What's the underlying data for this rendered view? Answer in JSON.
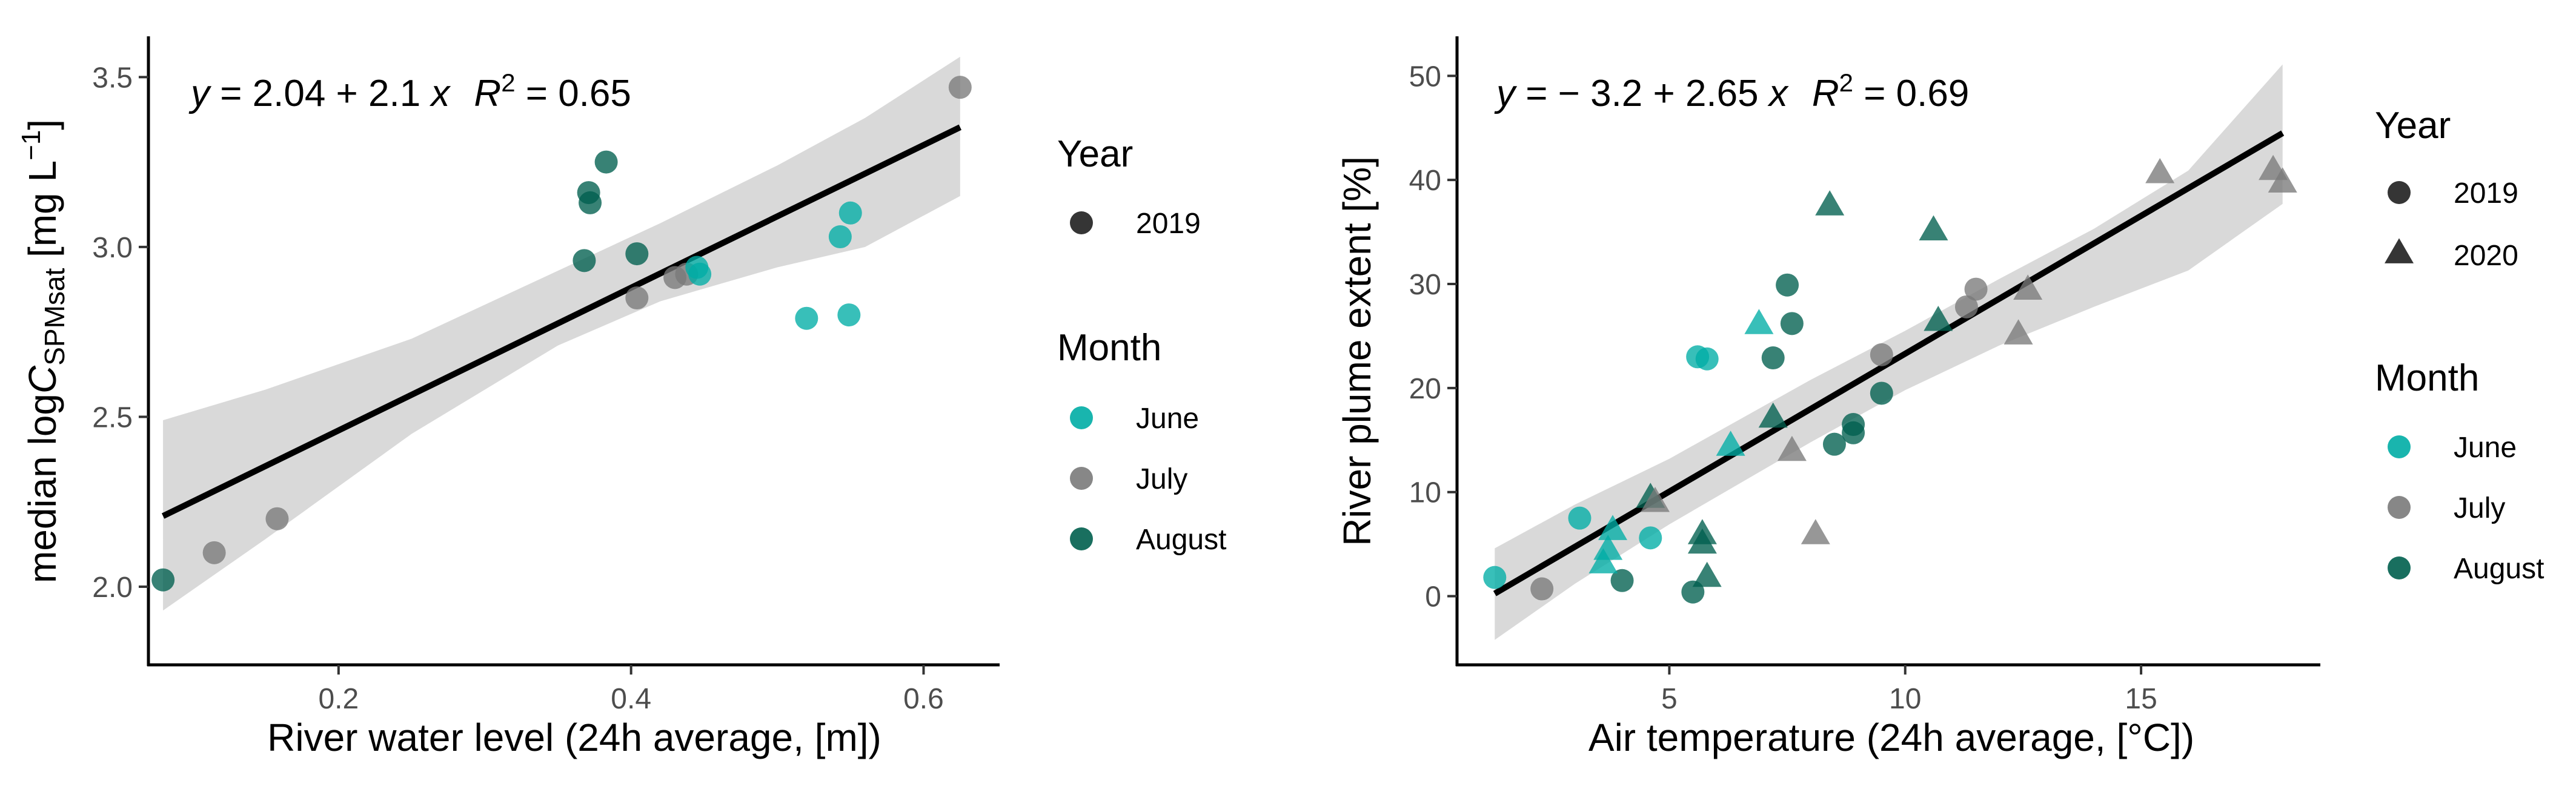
{
  "chart_data": [
    {
      "type": "scatter",
      "panel": "left",
      "xlabel": "River water level (24h average, [m])",
      "ylabel": {
        "prefix": "median log",
        "var": "C",
        "sub": "SPMsat",
        "unit_open": " [mg L",
        "unit_sup": "−1",
        "unit_close": "]"
      },
      "xlim": [
        0.07,
        0.652
      ],
      "ylim": [
        1.77,
        3.62
      ],
      "xticks": [
        0.2,
        0.4,
        0.6
      ],
      "xtick_labels": [
        "0.2",
        "0.4",
        "0.6"
      ],
      "yticks": [
        2.0,
        2.5,
        3.0,
        3.5
      ],
      "ytick_labels": [
        "2.0",
        "2.5",
        "3.0",
        "3.5"
      ],
      "equation": {
        "y_lhs": "y",
        "eq": " = 2.04 + 2.1 ",
        "x_rhs": "x",
        "r_label": "R",
        "r_exp": "2",
        "r_val": " = 0.65"
      },
      "fit": {
        "intercept": 2.04,
        "slope": 2.1,
        "x_range": [
          0.08,
          0.625
        ]
      },
      "ci": {
        "x": [
          0.08,
          0.15,
          0.25,
          0.35,
          0.42,
          0.5,
          0.56,
          0.625
        ],
        "lower": [
          1.93,
          2.14,
          2.45,
          2.71,
          2.84,
          2.94,
          3.0,
          3.15
        ],
        "upper": [
          2.49,
          2.58,
          2.73,
          2.93,
          3.07,
          3.24,
          3.38,
          3.56
        ]
      },
      "legend": {
        "year_title": "Year",
        "years": [
          {
            "label": "2019",
            "shape": "circle"
          }
        ],
        "month_title": "Month",
        "months": [
          {
            "label": "June",
            "color": "#00ada5"
          },
          {
            "label": "July",
            "color": "#7a7a7a"
          },
          {
            "label": "August",
            "color": "#005f4e"
          }
        ]
      },
      "points": [
        {
          "x": 0.08,
          "y": 2.02,
          "month": "August",
          "shape": "circle"
        },
        {
          "x": 0.115,
          "y": 2.1,
          "month": "July",
          "shape": "circle"
        },
        {
          "x": 0.158,
          "y": 2.2,
          "month": "July",
          "shape": "circle"
        },
        {
          "x": 0.368,
          "y": 2.96,
          "month": "August",
          "shape": "circle"
        },
        {
          "x": 0.371,
          "y": 3.16,
          "month": "August",
          "shape": "circle"
        },
        {
          "x": 0.372,
          "y": 3.13,
          "month": "August",
          "shape": "circle"
        },
        {
          "x": 0.383,
          "y": 3.25,
          "month": "August",
          "shape": "circle"
        },
        {
          "x": 0.404,
          "y": 2.98,
          "month": "August",
          "shape": "circle"
        },
        {
          "x": 0.404,
          "y": 2.85,
          "month": "July",
          "shape": "circle"
        },
        {
          "x": 0.43,
          "y": 2.91,
          "month": "July",
          "shape": "circle"
        },
        {
          "x": 0.438,
          "y": 2.92,
          "month": "July",
          "shape": "circle"
        },
        {
          "x": 0.445,
          "y": 2.94,
          "month": "June",
          "shape": "circle"
        },
        {
          "x": 0.447,
          "y": 2.92,
          "month": "June",
          "shape": "circle"
        },
        {
          "x": 0.52,
          "y": 2.79,
          "month": "June",
          "shape": "circle"
        },
        {
          "x": 0.543,
          "y": 3.03,
          "month": "June",
          "shape": "circle"
        },
        {
          "x": 0.549,
          "y": 2.8,
          "month": "June",
          "shape": "circle"
        },
        {
          "x": 0.55,
          "y": 3.1,
          "month": "June",
          "shape": "circle"
        },
        {
          "x": 0.625,
          "y": 3.47,
          "month": "July",
          "shape": "circle"
        }
      ]
    },
    {
      "type": "scatter",
      "panel": "right",
      "xlabel": "Air temperature (24h average, [°C])",
      "ylabel": {
        "text": "River plume extent [%]"
      },
      "xlim": [
        0.5,
        18.8
      ],
      "ylim": [
        -6.6,
        53.8
      ],
      "xticks": [
        5,
        10,
        15
      ],
      "xtick_labels": [
        "5",
        "10",
        "15"
      ],
      "yticks": [
        0,
        10,
        20,
        30,
        40,
        50
      ],
      "ytick_labels": [
        "0",
        "10",
        "20",
        "30",
        "40",
        "50"
      ],
      "equation": {
        "y_lhs": "y",
        "eq": " = − 3.2 + 2.65 ",
        "x_rhs": "x",
        "r_label": "R",
        "r_exp": "2",
        "r_val": " = 0.69"
      },
      "fit": {
        "intercept": -3.2,
        "slope": 2.65,
        "x_range": [
          1.3,
          18.0
        ]
      },
      "ci": {
        "x": [
          1.3,
          3,
          5,
          8,
          10,
          12,
          14,
          16,
          18
        ],
        "lower": [
          -4.2,
          1.2,
          6.9,
          14.8,
          19.8,
          24.1,
          27.8,
          31.3,
          37.7
        ],
        "upper": [
          4.6,
          8.8,
          13.2,
          20.8,
          25.5,
          30.5,
          35.3,
          40.9,
          51.1
        ]
      },
      "legend": {
        "year_title": "Year",
        "years": [
          {
            "label": "2019",
            "shape": "circle"
          },
          {
            "label": "2020",
            "shape": "triangle"
          }
        ],
        "month_title": "Month",
        "months": [
          {
            "label": "June",
            "color": "#00ada5"
          },
          {
            "label": "July",
            "color": "#7a7a7a"
          },
          {
            "label": "August",
            "color": "#005f4e"
          }
        ]
      },
      "points": [
        {
          "x": 1.3,
          "y": 1.8,
          "month": "June",
          "shape": "circle"
        },
        {
          "x": 2.3,
          "y": 0.7,
          "month": "July",
          "shape": "circle"
        },
        {
          "x": 3.1,
          "y": 7.5,
          "month": "June",
          "shape": "circle"
        },
        {
          "x": 4.0,
          "y": 1.5,
          "month": "August",
          "shape": "circle"
        },
        {
          "x": 4.6,
          "y": 5.6,
          "month": "June",
          "shape": "circle"
        },
        {
          "x": 5.6,
          "y": 23.0,
          "month": "June",
          "shape": "circle"
        },
        {
          "x": 5.8,
          "y": 22.8,
          "month": "June",
          "shape": "circle"
        },
        {
          "x": 5.5,
          "y": 0.4,
          "month": "August",
          "shape": "circle"
        },
        {
          "x": 7.2,
          "y": 22.9,
          "month": "August",
          "shape": "circle"
        },
        {
          "x": 7.5,
          "y": 29.9,
          "month": "August",
          "shape": "circle"
        },
        {
          "x": 7.6,
          "y": 26.2,
          "month": "August",
          "shape": "circle"
        },
        {
          "x": 8.5,
          "y": 14.6,
          "month": "August",
          "shape": "circle"
        },
        {
          "x": 8.9,
          "y": 15.7,
          "month": "August",
          "shape": "circle"
        },
        {
          "x": 8.9,
          "y": 16.5,
          "month": "August",
          "shape": "circle"
        },
        {
          "x": 9.5,
          "y": 19.5,
          "month": "August",
          "shape": "circle"
        },
        {
          "x": 9.5,
          "y": 23.2,
          "month": "July",
          "shape": "circle"
        },
        {
          "x": 11.3,
          "y": 27.8,
          "month": "July",
          "shape": "circle"
        },
        {
          "x": 11.5,
          "y": 29.5,
          "month": "July",
          "shape": "circle"
        },
        {
          "x": 3.6,
          "y": 3.0,
          "month": "June",
          "shape": "triangle"
        },
        {
          "x": 3.7,
          "y": 4.3,
          "month": "June",
          "shape": "triangle"
        },
        {
          "x": 3.8,
          "y": 6.2,
          "month": "June",
          "shape": "triangle"
        },
        {
          "x": 4.6,
          "y": 9.3,
          "month": "August",
          "shape": "triangle"
        },
        {
          "x": 4.7,
          "y": 8.9,
          "month": "July",
          "shape": "triangle"
        },
        {
          "x": 5.7,
          "y": 5.8,
          "month": "August",
          "shape": "triangle"
        },
        {
          "x": 5.7,
          "y": 4.9,
          "month": "August",
          "shape": "triangle"
        },
        {
          "x": 5.8,
          "y": 1.7,
          "month": "August",
          "shape": "triangle"
        },
        {
          "x": 6.3,
          "y": 14.3,
          "month": "June",
          "shape": "triangle"
        },
        {
          "x": 6.9,
          "y": 26.0,
          "month": "June",
          "shape": "triangle"
        },
        {
          "x": 7.2,
          "y": 17.0,
          "month": "August",
          "shape": "triangle"
        },
        {
          "x": 7.6,
          "y": 13.8,
          "month": "July",
          "shape": "triangle"
        },
        {
          "x": 8.1,
          "y": 5.8,
          "month": "July",
          "shape": "triangle"
        },
        {
          "x": 8.4,
          "y": 37.4,
          "month": "August",
          "shape": "triangle"
        },
        {
          "x": 10.6,
          "y": 35.0,
          "month": "August",
          "shape": "triangle"
        },
        {
          "x": 10.7,
          "y": 26.3,
          "month": "August",
          "shape": "triangle"
        },
        {
          "x": 12.4,
          "y": 25.0,
          "month": "July",
          "shape": "triangle"
        },
        {
          "x": 12.6,
          "y": 29.3,
          "month": "July",
          "shape": "triangle"
        },
        {
          "x": 15.4,
          "y": 40.5,
          "month": "July",
          "shape": "triangle"
        },
        {
          "x": 17.8,
          "y": 40.8,
          "month": "July",
          "shape": "triangle"
        },
        {
          "x": 18.0,
          "y": 39.6,
          "month": "July",
          "shape": "triangle"
        }
      ]
    }
  ]
}
